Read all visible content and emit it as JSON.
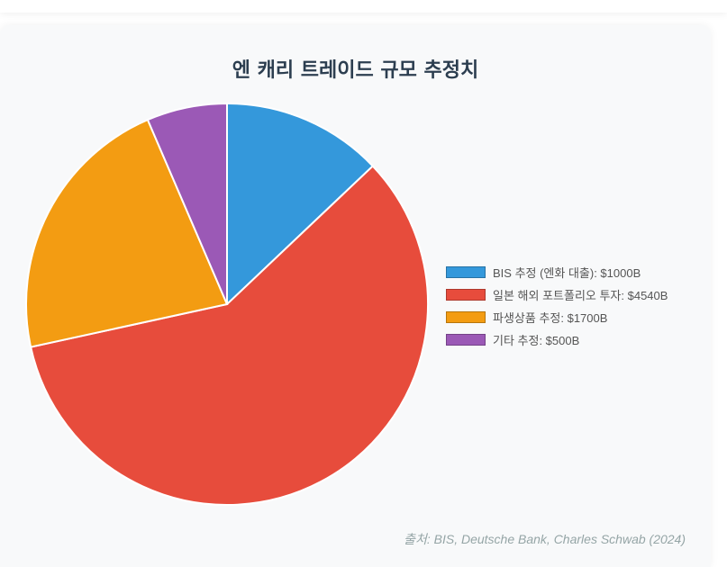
{
  "chart_data": {
    "type": "pie",
    "title": "엔 캐리 트레이드 규모 추정치",
    "categories": [
      "BIS 추정 (엔화 대출): $1000B",
      "일본 해외 포트폴리오 투자: $4540B",
      "파생상품 추정: $1700B",
      "기타 추정: $500B"
    ],
    "values": [
      1000,
      4540,
      1700,
      500
    ],
    "colors": [
      "#3498db",
      "#e74c3c",
      "#f39c12",
      "#9b59b6"
    ],
    "legend_position": "right"
  },
  "footer": {
    "source": "출처: BIS, Deutsche Bank, Charles Schwab (2024)"
  }
}
